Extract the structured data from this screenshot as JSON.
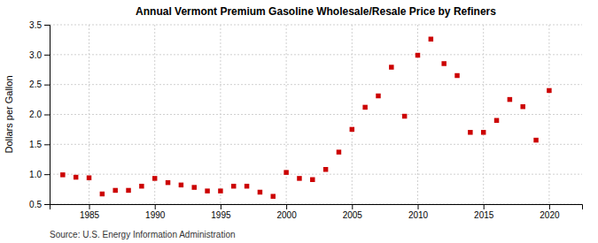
{
  "chart_data": {
    "type": "scatter",
    "title": "Annual Vermont Premium Gasoline Wholesale/Resale Price by Refiners",
    "ylabel": "Dollars per Gallon",
    "annotations": [
      "Source: U.S. Energy Information Administration"
    ],
    "x": [
      1983,
      1984,
      1985,
      1986,
      1987,
      1988,
      1989,
      1990,
      1991,
      1992,
      1993,
      1994,
      1995,
      1996,
      1997,
      1998,
      1999,
      2000,
      2001,
      2002,
      2003,
      2004,
      2005,
      2006,
      2007,
      2008,
      2009,
      2010,
      2011,
      2012,
      2013,
      2014,
      2015,
      2016,
      2017,
      2018,
      2019,
      2020
    ],
    "values": [
      0.99,
      0.95,
      0.94,
      0.67,
      0.73,
      0.73,
      0.8,
      0.93,
      0.86,
      0.82,
      0.78,
      0.72,
      0.72,
      0.8,
      0.8,
      0.7,
      0.63,
      1.03,
      0.93,
      0.91,
      1.08,
      1.37,
      1.75,
      2.12,
      2.31,
      2.79,
      1.97,
      2.99,
      3.26,
      2.85,
      2.65,
      1.7,
      1.7,
      1.9,
      2.25,
      2.13,
      1.57,
      2.4
    ],
    "color": "#cc0000",
    "marker": "square",
    "xlim": [
      1982,
      2022.5
    ],
    "ylim": [
      0.5,
      3.5
    ],
    "xticks": [
      1985,
      1990,
      1995,
      2000,
      2005,
      2010,
      2015,
      2020
    ],
    "yticks": [
      0.5,
      {
        "value": 1.0,
        "label": "1.0"
      },
      1.5,
      {
        "value": 2.0,
        "label": "2.0"
      },
      2.5,
      {
        "value": 3.0,
        "label": "3.0"
      },
      3.5
    ],
    "grid": true
  }
}
